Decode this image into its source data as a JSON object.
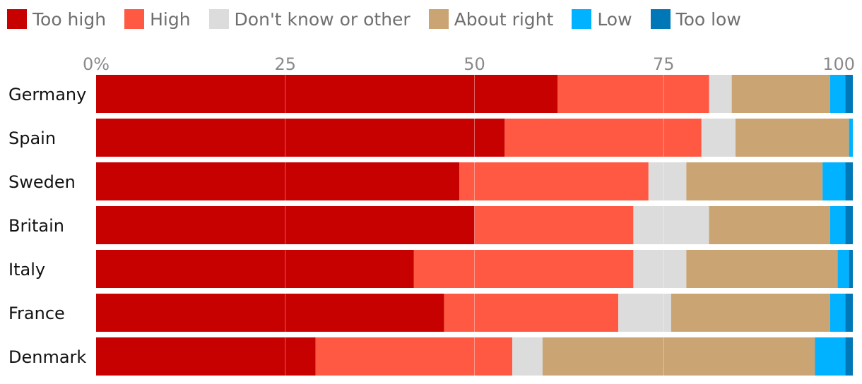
{
  "chart_data": {
    "type": "bar",
    "orientation": "horizontal",
    "stacked": true,
    "categories": [
      "Germany",
      "Spain",
      "Sweden",
      "Britain",
      "Italy",
      "France",
      "Denmark"
    ],
    "series": [
      {
        "name": "Too high",
        "color": "#c70000",
        "values": [
          61,
          54,
          48,
          50,
          42,
          46,
          29
        ]
      },
      {
        "name": "High",
        "color": "#ff5943",
        "values": [
          20,
          26,
          25,
          21,
          29,
          23,
          26
        ]
      },
      {
        "name": "Don't know or other",
        "color": "#dcdcdc",
        "values": [
          3,
          4.5,
          5,
          10,
          7,
          7,
          4
        ]
      },
      {
        "name": "About right",
        "color": "#caa472",
        "values": [
          13,
          15,
          18,
          16,
          20,
          21,
          36
        ]
      },
      {
        "name": "Low",
        "color": "#00b2ff",
        "values": [
          2,
          0.5,
          3,
          2,
          1.5,
          2,
          4
        ]
      },
      {
        "name": "Too low",
        "color": "#0077b6",
        "values": [
          1,
          0,
          1,
          1,
          0.5,
          1,
          1
        ]
      }
    ],
    "xlim": [
      0,
      100
    ],
    "xticks": [
      0,
      25,
      50,
      75,
      100
    ],
    "xtick_labels": [
      "0%",
      "25",
      "50",
      "75",
      "100"
    ],
    "gridlines": true,
    "legend_position": "top",
    "title": "",
    "xlabel": "",
    "ylabel": ""
  }
}
